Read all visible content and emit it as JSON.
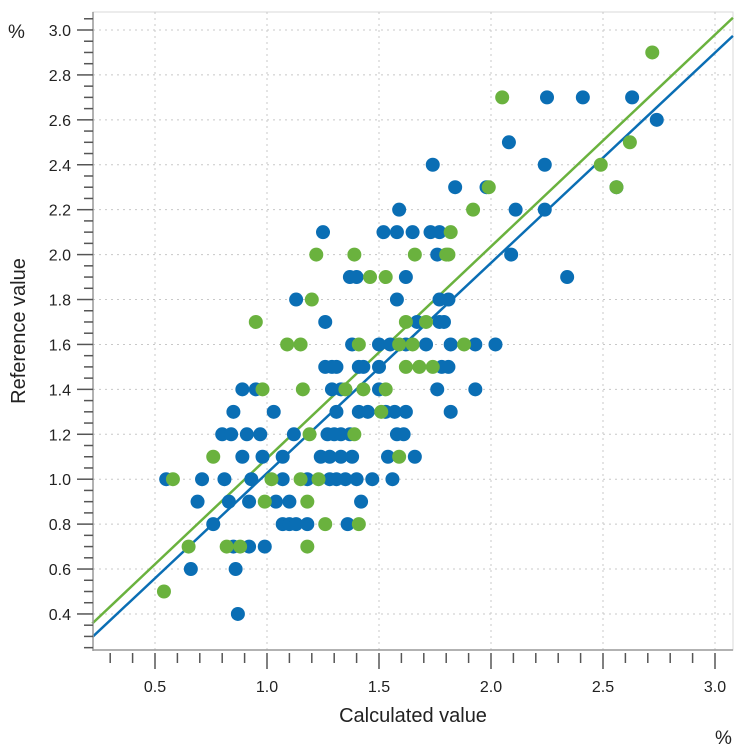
{
  "chart_data": {
    "type": "scatter",
    "title": "",
    "xlabel": "Calculated value",
    "ylabel": "Reference value",
    "x_unit": "%",
    "y_unit": "%",
    "xlim": [
      0.22,
      3.08
    ],
    "ylim": [
      0.24,
      3.08
    ],
    "x_ticks": [
      "0.5",
      "1.0",
      "1.5",
      "2.0",
      "2.5",
      "3.0"
    ],
    "y_ticks": [
      "0.4",
      "0.6",
      "0.8",
      "1.0",
      "1.2",
      "1.4",
      "1.6",
      "1.8",
      "2.0",
      "2.2",
      "2.4",
      "2.6",
      "2.8",
      "3.0"
    ],
    "grid": true,
    "legend": "none",
    "series": [
      {
        "color": "#0a6eb4",
        "points": [
          [
            2.25,
            2.7
          ],
          [
            2.41,
            2.7
          ],
          [
            2.63,
            2.7
          ],
          [
            2.74,
            2.6
          ],
          [
            2.08,
            2.5
          ],
          [
            1.74,
            2.4
          ],
          [
            2.24,
            2.4
          ],
          [
            1.84,
            2.3
          ],
          [
            1.98,
            2.3
          ],
          [
            2.56,
            2.3
          ],
          [
            1.59,
            2.2
          ],
          [
            2.11,
            2.2
          ],
          [
            2.24,
            2.2
          ],
          [
            1.25,
            2.1
          ],
          [
            1.52,
            2.1
          ],
          [
            1.58,
            2.1
          ],
          [
            1.65,
            2.1
          ],
          [
            1.73,
            2.1
          ],
          [
            1.77,
            2.1
          ],
          [
            1.76,
            2.0
          ],
          [
            2.09,
            2.0
          ],
          [
            1.37,
            1.9
          ],
          [
            1.4,
            1.9
          ],
          [
            1.62,
            1.9
          ],
          [
            2.34,
            1.9
          ],
          [
            1.13,
            1.8
          ],
          [
            1.58,
            1.8
          ],
          [
            1.77,
            1.8
          ],
          [
            1.81,
            1.8
          ],
          [
            1.26,
            1.7
          ],
          [
            1.67,
            1.7
          ],
          [
            1.77,
            1.7
          ],
          [
            1.79,
            1.7
          ],
          [
            1.38,
            1.6
          ],
          [
            1.5,
            1.6
          ],
          [
            1.55,
            1.6
          ],
          [
            1.62,
            1.6
          ],
          [
            1.71,
            1.6
          ],
          [
            1.82,
            1.6
          ],
          [
            1.93,
            1.6
          ],
          [
            2.02,
            1.6
          ],
          [
            1.26,
            1.5
          ],
          [
            1.29,
            1.5
          ],
          [
            1.31,
            1.5
          ],
          [
            1.41,
            1.5
          ],
          [
            1.43,
            1.5
          ],
          [
            1.5,
            1.5
          ],
          [
            1.78,
            1.5
          ],
          [
            1.81,
            1.5
          ],
          [
            0.89,
            1.4
          ],
          [
            0.95,
            1.4
          ],
          [
            1.29,
            1.4
          ],
          [
            1.33,
            1.4
          ],
          [
            1.5,
            1.4
          ],
          [
            1.76,
            1.4
          ],
          [
            1.93,
            1.4
          ],
          [
            0.85,
            1.3
          ],
          [
            1.03,
            1.3
          ],
          [
            1.31,
            1.3
          ],
          [
            1.41,
            1.3
          ],
          [
            1.45,
            1.3
          ],
          [
            1.53,
            1.3
          ],
          [
            1.57,
            1.3
          ],
          [
            1.62,
            1.3
          ],
          [
            1.82,
            1.3
          ],
          [
            0.8,
            1.2
          ],
          [
            0.84,
            1.2
          ],
          [
            0.91,
            1.2
          ],
          [
            0.97,
            1.2
          ],
          [
            1.12,
            1.2
          ],
          [
            1.27,
            1.2
          ],
          [
            1.3,
            1.2
          ],
          [
            1.33,
            1.2
          ],
          [
            1.37,
            1.2
          ],
          [
            1.58,
            1.2
          ],
          [
            1.61,
            1.2
          ],
          [
            0.89,
            1.1
          ],
          [
            0.98,
            1.1
          ],
          [
            1.07,
            1.1
          ],
          [
            1.24,
            1.1
          ],
          [
            1.28,
            1.1
          ],
          [
            1.33,
            1.1
          ],
          [
            1.38,
            1.1
          ],
          [
            1.54,
            1.1
          ],
          [
            1.66,
            1.1
          ],
          [
            0.55,
            1.0
          ],
          [
            0.71,
            1.0
          ],
          [
            0.81,
            1.0
          ],
          [
            0.93,
            1.0
          ],
          [
            1.07,
            1.0
          ],
          [
            1.18,
            1.0
          ],
          [
            1.28,
            1.0
          ],
          [
            1.31,
            1.0
          ],
          [
            1.35,
            1.0
          ],
          [
            1.4,
            1.0
          ],
          [
            1.47,
            1.0
          ],
          [
            1.56,
            1.0
          ],
          [
            0.69,
            0.9
          ],
          [
            0.83,
            0.9
          ],
          [
            0.92,
            0.9
          ],
          [
            1.04,
            0.9
          ],
          [
            1.1,
            0.9
          ],
          [
            1.42,
            0.9
          ],
          [
            0.76,
            0.8
          ],
          [
            1.07,
            0.8
          ],
          [
            1.1,
            0.8
          ],
          [
            1.13,
            0.8
          ],
          [
            1.18,
            0.8
          ],
          [
            1.36,
            0.8
          ],
          [
            0.85,
            0.7
          ],
          [
            0.92,
            0.7
          ],
          [
            0.99,
            0.7
          ],
          [
            0.66,
            0.6
          ],
          [
            0.86,
            0.6
          ],
          [
            0.87,
            0.4
          ]
        ],
        "fit": {
          "slope": 0.936,
          "intercept": 0.091
        }
      },
      {
        "color": "#6ab23e",
        "points": [
          [
            2.72,
            2.9
          ],
          [
            2.05,
            2.7
          ],
          [
            2.62,
            2.5
          ],
          [
            2.49,
            2.4
          ],
          [
            1.99,
            2.3
          ],
          [
            2.56,
            2.3
          ],
          [
            1.92,
            2.2
          ],
          [
            1.82,
            2.1
          ],
          [
            1.22,
            2.0
          ],
          [
            1.39,
            2.0
          ],
          [
            1.66,
            2.0
          ],
          [
            1.8,
            2.0
          ],
          [
            1.81,
            2.0
          ],
          [
            1.46,
            1.9
          ],
          [
            1.53,
            1.9
          ],
          [
            1.2,
            1.8
          ],
          [
            0.95,
            1.7
          ],
          [
            1.62,
            1.7
          ],
          [
            1.71,
            1.7
          ],
          [
            1.09,
            1.6
          ],
          [
            1.15,
            1.6
          ],
          [
            1.41,
            1.6
          ],
          [
            1.59,
            1.6
          ],
          [
            1.65,
            1.6
          ],
          [
            1.88,
            1.6
          ],
          [
            1.62,
            1.5
          ],
          [
            1.68,
            1.5
          ],
          [
            1.74,
            1.5
          ],
          [
            0.98,
            1.4
          ],
          [
            1.16,
            1.4
          ],
          [
            1.35,
            1.4
          ],
          [
            1.43,
            1.4
          ],
          [
            1.53,
            1.4
          ],
          [
            1.51,
            1.3
          ],
          [
            1.19,
            1.2
          ],
          [
            1.39,
            1.2
          ],
          [
            0.76,
            1.1
          ],
          [
            1.59,
            1.1
          ],
          [
            0.58,
            1.0
          ],
          [
            1.02,
            1.0
          ],
          [
            1.15,
            1.0
          ],
          [
            1.23,
            1.0
          ],
          [
            0.99,
            0.9
          ],
          [
            1.18,
            0.9
          ],
          [
            1.26,
            0.8
          ],
          [
            1.41,
            0.8
          ],
          [
            0.65,
            0.7
          ],
          [
            0.82,
            0.7
          ],
          [
            0.88,
            0.7
          ],
          [
            1.18,
            0.7
          ],
          [
            0.54,
            0.5
          ]
        ],
        "fit": {
          "slope": 0.943,
          "intercept": 0.15
        }
      }
    ]
  }
}
